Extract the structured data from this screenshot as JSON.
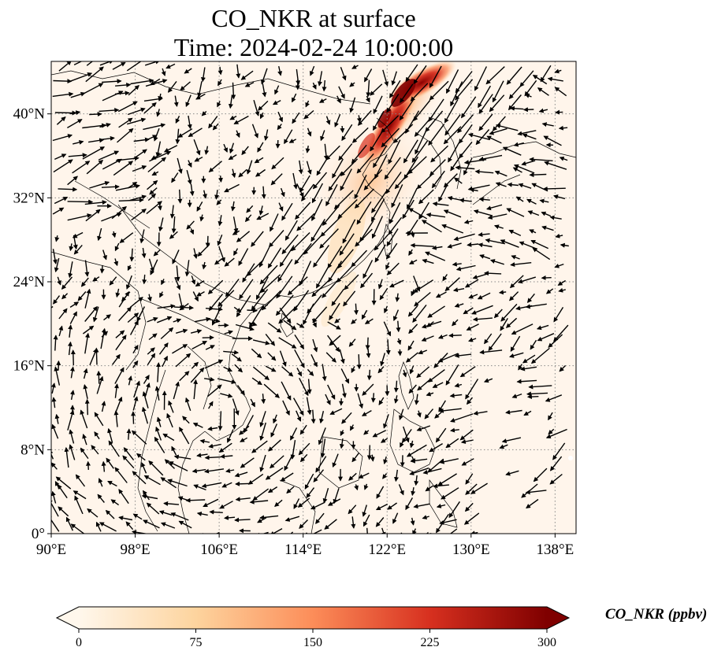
{
  "title": {
    "line1": "CO_NKR at surface",
    "line2": "Time: 2024-02-24 10:00:00"
  },
  "map": {
    "projection": "PlateCarree",
    "lon_range": [
      90,
      140
    ],
    "lat_range": [
      0,
      45
    ],
    "gridlines": "dotted",
    "lon_ticks": [
      {
        "value": 90,
        "label": "90°E"
      },
      {
        "value": 98,
        "label": "98°E"
      },
      {
        "value": 106,
        "label": "106°E"
      },
      {
        "value": 114,
        "label": "114°E"
      },
      {
        "value": 122,
        "label": "122°E"
      },
      {
        "value": 130,
        "label": "130°E"
      },
      {
        "value": 138,
        "label": "138°E"
      }
    ],
    "lat_ticks": [
      {
        "value": 0,
        "label": "0°"
      },
      {
        "value": 8,
        "label": "8°N"
      },
      {
        "value": 16,
        "label": "16°N"
      },
      {
        "value": 24,
        "label": "24°N"
      },
      {
        "value": 32,
        "label": "32°N"
      },
      {
        "value": 40,
        "label": "40°N"
      }
    ],
    "field_background": "#fff5eb",
    "vector_color": "#000000"
  },
  "colorbar": {
    "label": "CO_NKR (ppbv)",
    "min": 0,
    "max": 300,
    "ticks": [
      {
        "value": 0,
        "label": "0"
      },
      {
        "value": 75,
        "label": "75"
      },
      {
        "value": 150,
        "label": "150"
      },
      {
        "value": 225,
        "label": "225"
      },
      {
        "value": 300,
        "label": "300"
      }
    ],
    "colormap": "OrRd",
    "colors": [
      "#fff7ec",
      "#fdd49e",
      "#fc8d59",
      "#d7301f",
      "#7f0000"
    ],
    "extend": "both"
  }
}
